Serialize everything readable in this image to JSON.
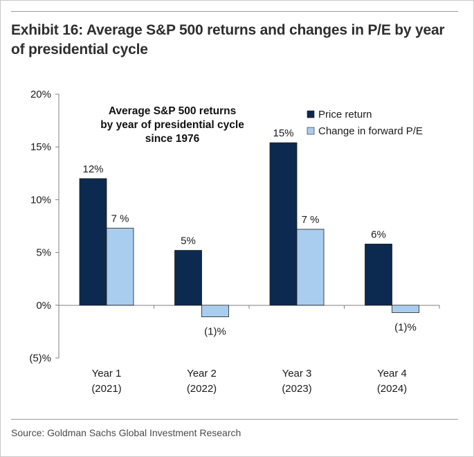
{
  "exhibit": {
    "title": "Exhibit 16: Average S&P 500 returns and changes in P/E by year of presidential cycle",
    "source": "Source: Goldman Sachs Global Investment Research"
  },
  "chart_data": {
    "type": "bar",
    "annotation": [
      "Average S&P 500 returns",
      "by year of presidential cycle",
      "since 1976"
    ],
    "categories": [
      [
        "Year 1",
        "(2021)"
      ],
      [
        "Year 2",
        "(2022)"
      ],
      [
        "Year 3",
        "(2023)"
      ],
      [
        "Year 4",
        "(2024)"
      ]
    ],
    "series": [
      {
        "name": "Price return",
        "color": "#0c2a50",
        "values": [
          12,
          5.2,
          15.4,
          5.8
        ],
        "labels": [
          "12%",
          "5%",
          "15%",
          "6%"
        ]
      },
      {
        "name": "Change in forward P/E",
        "color": "#a9cdee",
        "values": [
          7.3,
          -1.1,
          7.2,
          -0.7
        ],
        "labels": [
          "7 %",
          "(1)%",
          "7 %",
          "(1)%"
        ]
      }
    ],
    "ylim": [
      -5,
      20
    ],
    "yticks": [
      -5,
      0,
      5,
      10,
      15,
      20
    ],
    "ytick_labels": [
      "(5)%",
      "0%",
      "5%",
      "10%",
      "15%",
      "20%"
    ],
    "legend": "top-right",
    "grid": false
  }
}
